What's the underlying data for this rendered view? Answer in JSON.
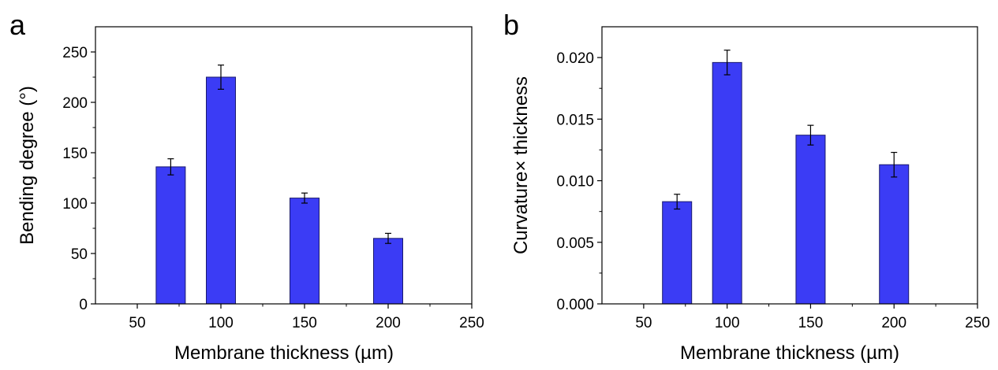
{
  "chart_data": [
    {
      "type": "bar",
      "panel_label": "a",
      "xlabel": "Membrane thickness (µm)",
      "ylabel": "Bending degree (°)",
      "x": [
        70,
        100,
        150,
        200
      ],
      "values": [
        136,
        225,
        105,
        65
      ],
      "errors": [
        8,
        12,
        5,
        5
      ],
      "xlim": [
        25,
        250
      ],
      "ylim": [
        0,
        275
      ],
      "xticks": [
        50,
        100,
        150,
        200,
        250
      ],
      "yticks": [
        0,
        50,
        100,
        150,
        200,
        250
      ],
      "xtick_labels": [
        "50",
        "100",
        "150",
        "200",
        "250"
      ],
      "ytick_labels": [
        "0",
        "50",
        "100",
        "150",
        "200",
        "250"
      ],
      "bar_color": "#3b3cf5",
      "grid": false
    },
    {
      "type": "bar",
      "panel_label": "b",
      "xlabel": "Membrane thickness (µm)",
      "ylabel": "Curvature× thickness",
      "x": [
        70,
        100,
        150,
        200
      ],
      "values": [
        0.0083,
        0.0196,
        0.0137,
        0.0113
      ],
      "errors": [
        0.0006,
        0.001,
        0.0008,
        0.001
      ],
      "xlim": [
        25,
        250
      ],
      "ylim": [
        0,
        0.0225
      ],
      "xticks": [
        50,
        100,
        150,
        200,
        250
      ],
      "yticks": [
        0,
        0.005,
        0.01,
        0.015,
        0.02
      ],
      "xtick_labels": [
        "50",
        "100",
        "150",
        "200",
        "250"
      ],
      "ytick_labels": [
        "0.000",
        "0.005",
        "0.010",
        "0.015",
        "0.020"
      ],
      "bar_color": "#3b3cf5",
      "grid": false
    }
  ]
}
